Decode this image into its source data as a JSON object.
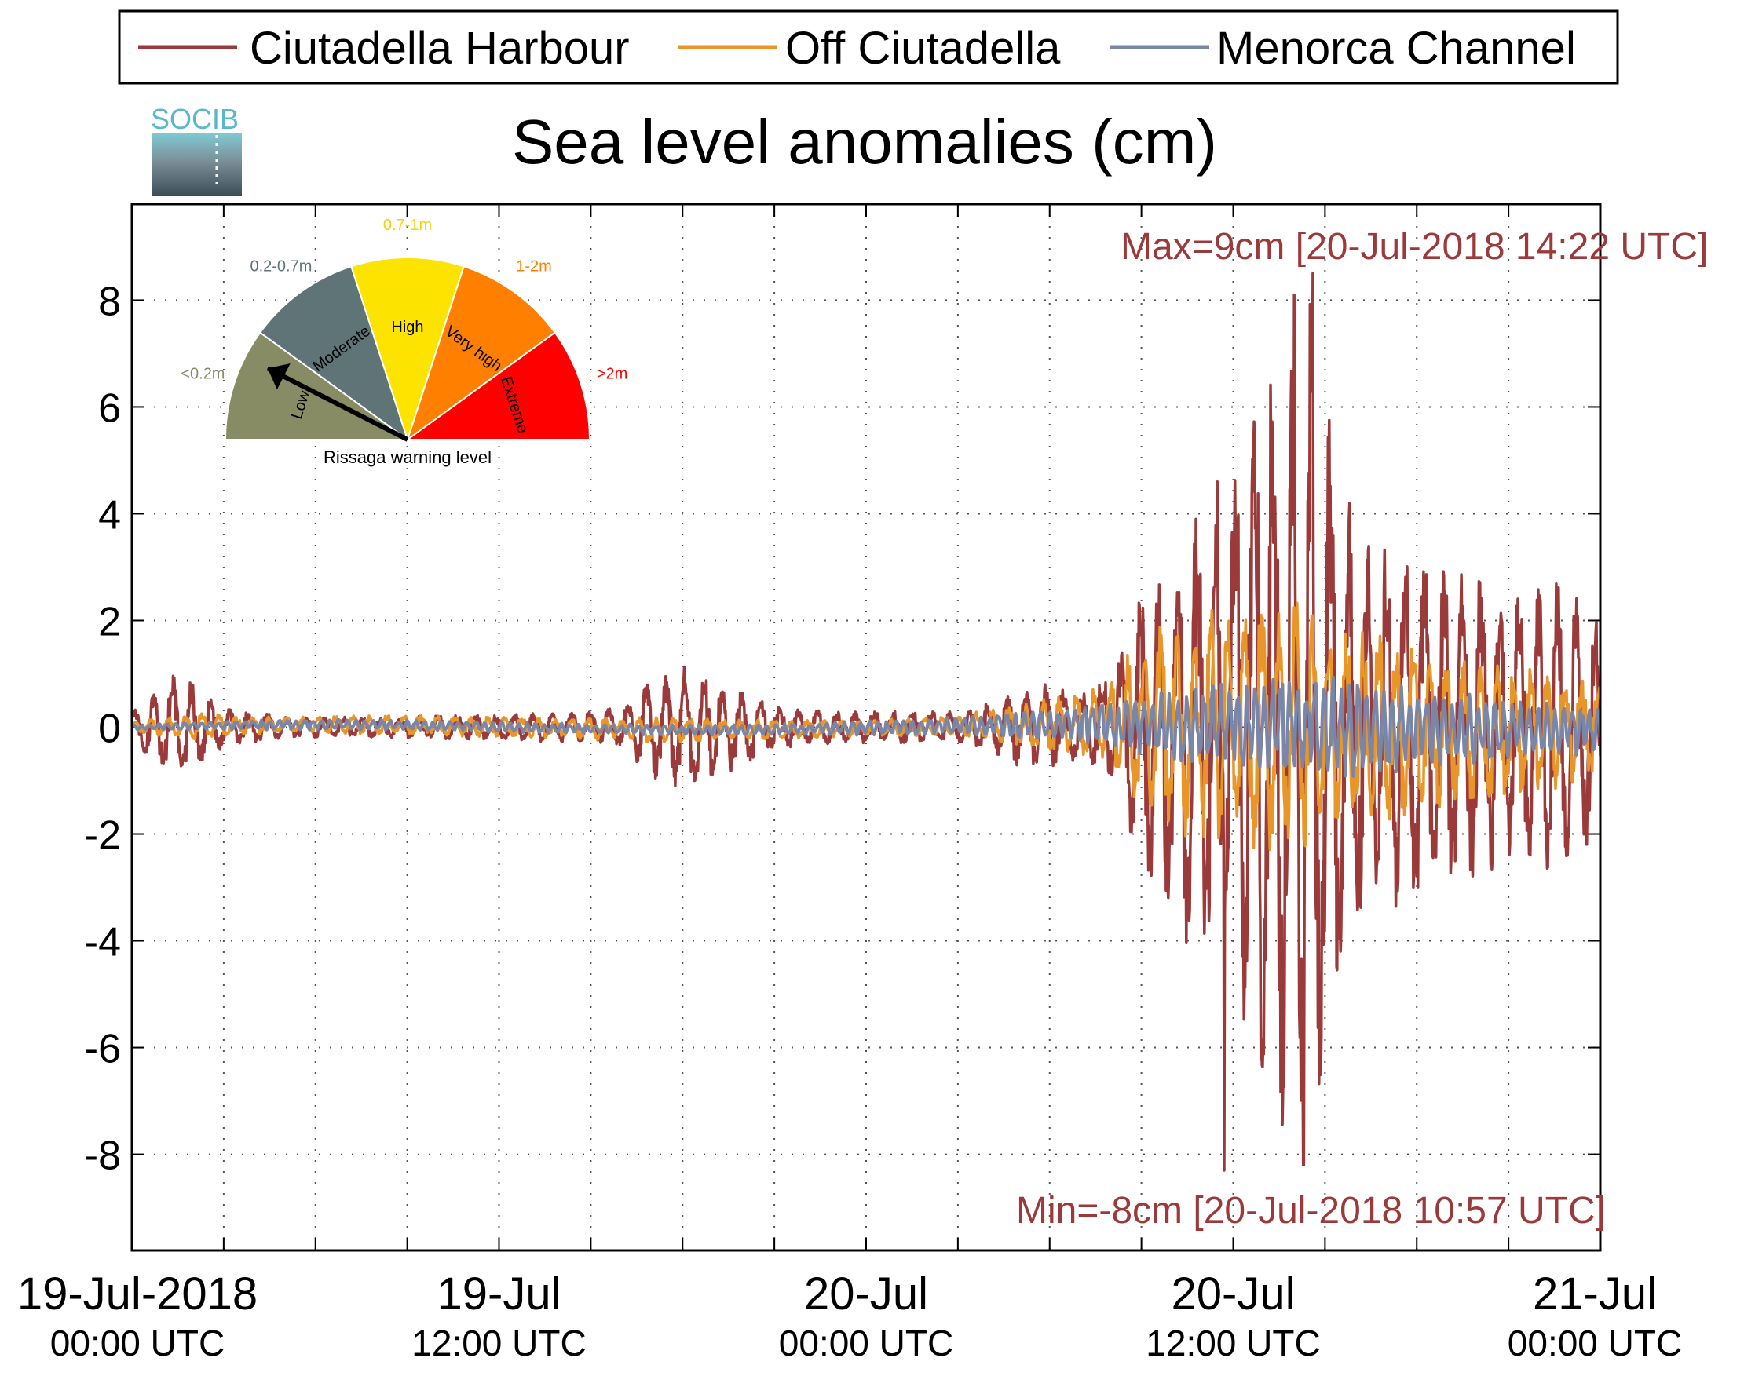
{
  "legend": {
    "items": [
      {
        "label": "Ciutadella Harbour",
        "color": "#9b3a3a"
      },
      {
        "label": "Off Ciutadella",
        "color": "#e8962a"
      },
      {
        "label": "Menorca Channel",
        "color": "#7a86a8"
      }
    ]
  },
  "logo": {
    "text": "SOCIB"
  },
  "title": "Sea level anomalies (cm)",
  "annotations": {
    "max": "Max=9cm [20-Jul-2018 14:22 UTC]",
    "min": "Min=-8cm [20-Jul-2018 10:57 UTC]",
    "color": "#9b3a3a"
  },
  "gauge": {
    "caption": "Rissaga warning level",
    "segments": [
      {
        "label": "Low",
        "range": "<0.2m",
        "color": "#878c64",
        "range_color": "#878c64"
      },
      {
        "label": "Moderate",
        "range": "0.2-0.7m",
        "color": "#5e7476",
        "range_color": "#5e7476"
      },
      {
        "label": "High",
        "range": "0.7-1m",
        "color": "#fde400",
        "range_color": "#f2d400"
      },
      {
        "label": "Very high",
        "range": "1-2m",
        "color": "#ff8000",
        "range_color": "#ff8000"
      },
      {
        "label": "Extreme",
        "range": ">2m",
        "color": "#ff0000",
        "range_color": "#ff0000"
      }
    ],
    "needle_level": "Low"
  },
  "chart_data": {
    "type": "line",
    "title": "Sea level anomalies (cm)",
    "xlabel": "",
    "ylabel": "",
    "ylim": [
      -9.8,
      9.8
    ],
    "yticks": [
      -8,
      -6,
      -4,
      -2,
      0,
      2,
      4,
      6,
      8
    ],
    "grid": true,
    "legend_position": "top",
    "x_range_hours": [
      0,
      48
    ],
    "xtick_labels": [
      {
        "hour": 0,
        "date": "19-Jul-2018",
        "time": "00:00 UTC"
      },
      {
        "hour": 12,
        "date": "19-Jul",
        "time": "12:00 UTC"
      },
      {
        "hour": 24,
        "date": "20-Jul",
        "time": "00:00 UTC"
      },
      {
        "hour": 36,
        "date": "20-Jul",
        "time": "12:00 UTC"
      },
      {
        "hour": 48,
        "date": "21-Jul",
        "time": "00:00 UTC"
      }
    ],
    "x_minor_ticks_hours": [
      3,
      6,
      9,
      15,
      18,
      21,
      27,
      30,
      33,
      39,
      42,
      45
    ],
    "series": [
      {
        "name": "Ciutadella Harbour",
        "color": "#9b3a3a",
        "envelope": [
          [
            0,
            0.3
          ],
          [
            1,
            0.9
          ],
          [
            1.5,
            1.1
          ],
          [
            2,
            0.8
          ],
          [
            3,
            0.4
          ],
          [
            5,
            0.2
          ],
          [
            8,
            0.2
          ],
          [
            12,
            0.25
          ],
          [
            15,
            0.3
          ],
          [
            16,
            0.4
          ],
          [
            17,
            1.0
          ],
          [
            18,
            1.2
          ],
          [
            19,
            1.0
          ],
          [
            20,
            0.7
          ],
          [
            21,
            0.4
          ],
          [
            23,
            0.3
          ],
          [
            25,
            0.3
          ],
          [
            27,
            0.3
          ],
          [
            28.5,
            0.6
          ],
          [
            29.5,
            0.9
          ],
          [
            31,
            0.6
          ],
          [
            32,
            1.1
          ],
          [
            33,
            2.6
          ],
          [
            35,
            4.8
          ],
          [
            36,
            4.5
          ],
          [
            37.2,
            8.0
          ],
          [
            38,
            7.0
          ],
          [
            38.5,
            8.5
          ],
          [
            39,
            7.0
          ],
          [
            40,
            4.0
          ],
          [
            41,
            3.5
          ],
          [
            43,
            3.0
          ],
          [
            44,
            3.0
          ],
          [
            45,
            2.5
          ],
          [
            46,
            3.0
          ],
          [
            47,
            2.7
          ],
          [
            48,
            2.0
          ]
        ],
        "extremes": [
          {
            "hour": 35.7,
            "value": -8.3
          },
          {
            "hour": 38.3,
            "value": -8.2
          },
          {
            "hour": 38.0,
            "value": 8.1
          },
          {
            "hour": 38.6,
            "value": 8.5
          }
        ]
      },
      {
        "name": "Off Ciutadella",
        "color": "#e8962a",
        "envelope": [
          [
            0,
            0.1
          ],
          [
            2,
            0.25
          ],
          [
            5,
            0.15
          ],
          [
            10,
            0.2
          ],
          [
            14,
            0.2
          ],
          [
            17,
            0.25
          ],
          [
            20,
            0.2
          ],
          [
            24,
            0.15
          ],
          [
            27,
            0.2
          ],
          [
            29,
            0.4
          ],
          [
            31,
            0.6
          ],
          [
            32,
            0.8
          ],
          [
            33,
            1.8
          ],
          [
            35,
            2.4
          ],
          [
            36,
            2.2
          ],
          [
            37,
            2.6
          ],
          [
            38,
            2.4
          ],
          [
            39,
            2.0
          ],
          [
            41,
            1.8
          ],
          [
            43,
            1.5
          ],
          [
            45,
            1.3
          ],
          [
            48,
            1.0
          ]
        ]
      },
      {
        "name": "Menorca Channel",
        "color": "#7a86a8",
        "envelope": [
          [
            0,
            0.05
          ],
          [
            5,
            0.1
          ],
          [
            12,
            0.1
          ],
          [
            20,
            0.1
          ],
          [
            26,
            0.15
          ],
          [
            29,
            0.25
          ],
          [
            31,
            0.4
          ],
          [
            33,
            0.6
          ],
          [
            35,
            0.8
          ],
          [
            38,
            1.0
          ],
          [
            39,
            1.1
          ],
          [
            42,
            0.8
          ],
          [
            45,
            0.6
          ],
          [
            48,
            0.5
          ]
        ]
      }
    ]
  }
}
